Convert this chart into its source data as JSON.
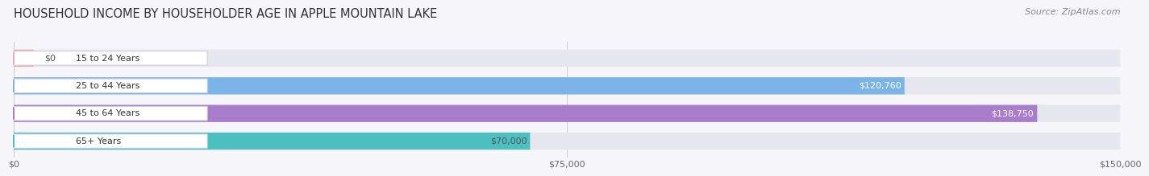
{
  "title": "HOUSEHOLD INCOME BY HOUSEHOLDER AGE IN APPLE MOUNTAIN LAKE",
  "source": "Source: ZipAtlas.com",
  "categories": [
    "15 to 24 Years",
    "25 to 44 Years",
    "45 to 64 Years",
    "65+ Years"
  ],
  "values": [
    0,
    120760,
    138750,
    70000
  ],
  "bar_colors": [
    "#f4a9b0",
    "#7ab4e8",
    "#a87dcb",
    "#4cbfc0"
  ],
  "track_color": "#e6e6ef",
  "xlim": [
    0,
    150000
  ],
  "xticks": [
    0,
    75000,
    150000
  ],
  "xtick_labels": [
    "$0",
    "$75,000",
    "$150,000"
  ],
  "value_labels": [
    "$0",
    "$120,760",
    "$138,750",
    "$70,000"
  ],
  "value_label_colors": [
    "#555555",
    "#ffffff",
    "#ffffff",
    "#555555"
  ],
  "background_color": "#f5f5fa",
  "title_fontsize": 10.5,
  "source_fontsize": 8,
  "bar_height": 0.62
}
